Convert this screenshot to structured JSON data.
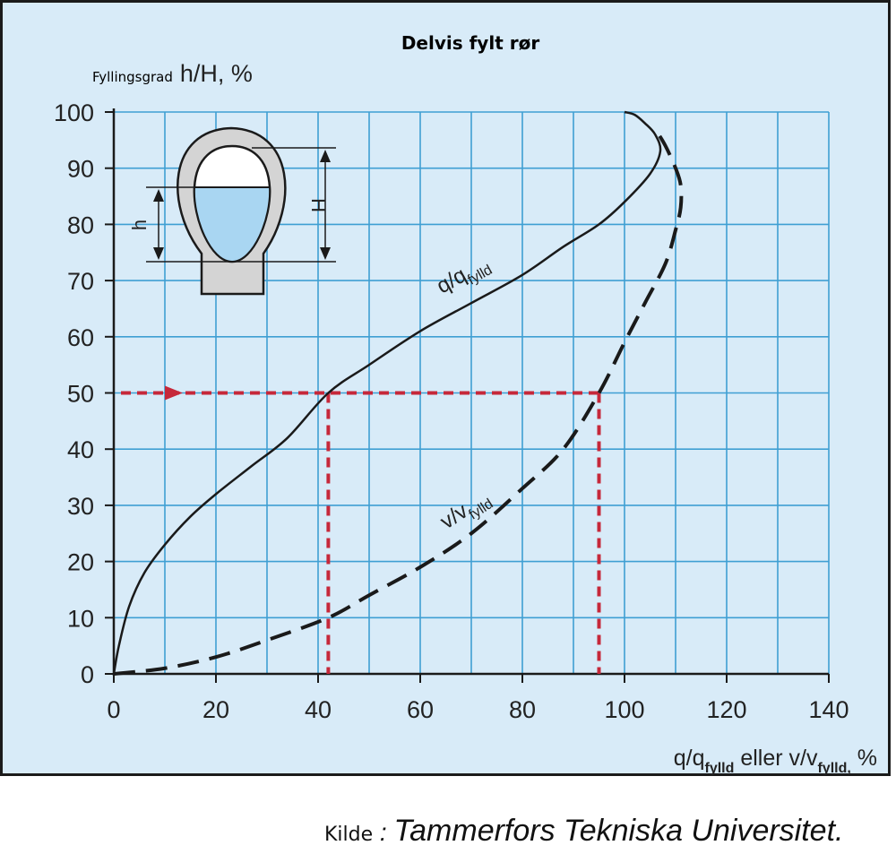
{
  "chart_data": {
    "type": "line",
    "title": "Delvis fylt rør",
    "ylabel_prefix": "Fyllingsgrad",
    "ylabel": "h/H, %",
    "xlabel": {
      "part1": "q/q",
      "part1_sub": "fylld",
      "part2": " eller v/v",
      "part2_sub": "fylld,",
      "part3": " %"
    },
    "xlim": [
      0,
      140
    ],
    "ylim": [
      0,
      100
    ],
    "x_ticks": [
      0,
      20,
      40,
      60,
      80,
      100,
      120,
      140
    ],
    "y_ticks": [
      0,
      10,
      20,
      30,
      40,
      50,
      60,
      70,
      80,
      90,
      100
    ],
    "grid": true,
    "series": [
      {
        "name": "q/q",
        "name_sub": "fylld",
        "style": "solid",
        "x": [
          0,
          1,
          3,
          6,
          10,
          15,
          20,
          27,
          34,
          42,
          50,
          60,
          70,
          80,
          88,
          95,
          100,
          105,
          107,
          106,
          104,
          102,
          100
        ],
        "y": [
          0,
          5,
          12,
          18,
          23,
          28,
          32,
          37,
          42,
          50,
          55,
          61,
          66,
          71,
          76,
          80,
          84,
          89,
          93,
          96,
          98,
          99.5,
          100
        ]
      },
      {
        "name": "v/v",
        "name_sub": "fylld",
        "style": "dashed",
        "x": [
          0,
          10,
          20,
          30,
          42,
          50,
          60,
          70,
          80,
          88,
          95,
          100,
          104,
          108,
          110,
          111,
          111,
          110,
          108,
          106
        ],
        "y": [
          0,
          1,
          3,
          6,
          10,
          14,
          19,
          25,
          33,
          40,
          50,
          59,
          66,
          73,
          79,
          83,
          87,
          90,
          94,
          97
        ]
      }
    ],
    "reference": {
      "y": 50,
      "x_values": [
        42,
        95
      ]
    },
    "inset": {
      "label_h": "h",
      "label_H": "H"
    }
  },
  "source": {
    "prefix": "Kilde",
    "separator": " : ",
    "name": "Tammerfors Tekniska Universitet."
  },
  "colors": {
    "background": "#d8ebf8",
    "grid": "#3f9fd3",
    "reference": "#c6283a",
    "curve": "#1a1a1a",
    "pipe_wall": "#d4d4d4",
    "water": "#a9d6f2"
  }
}
